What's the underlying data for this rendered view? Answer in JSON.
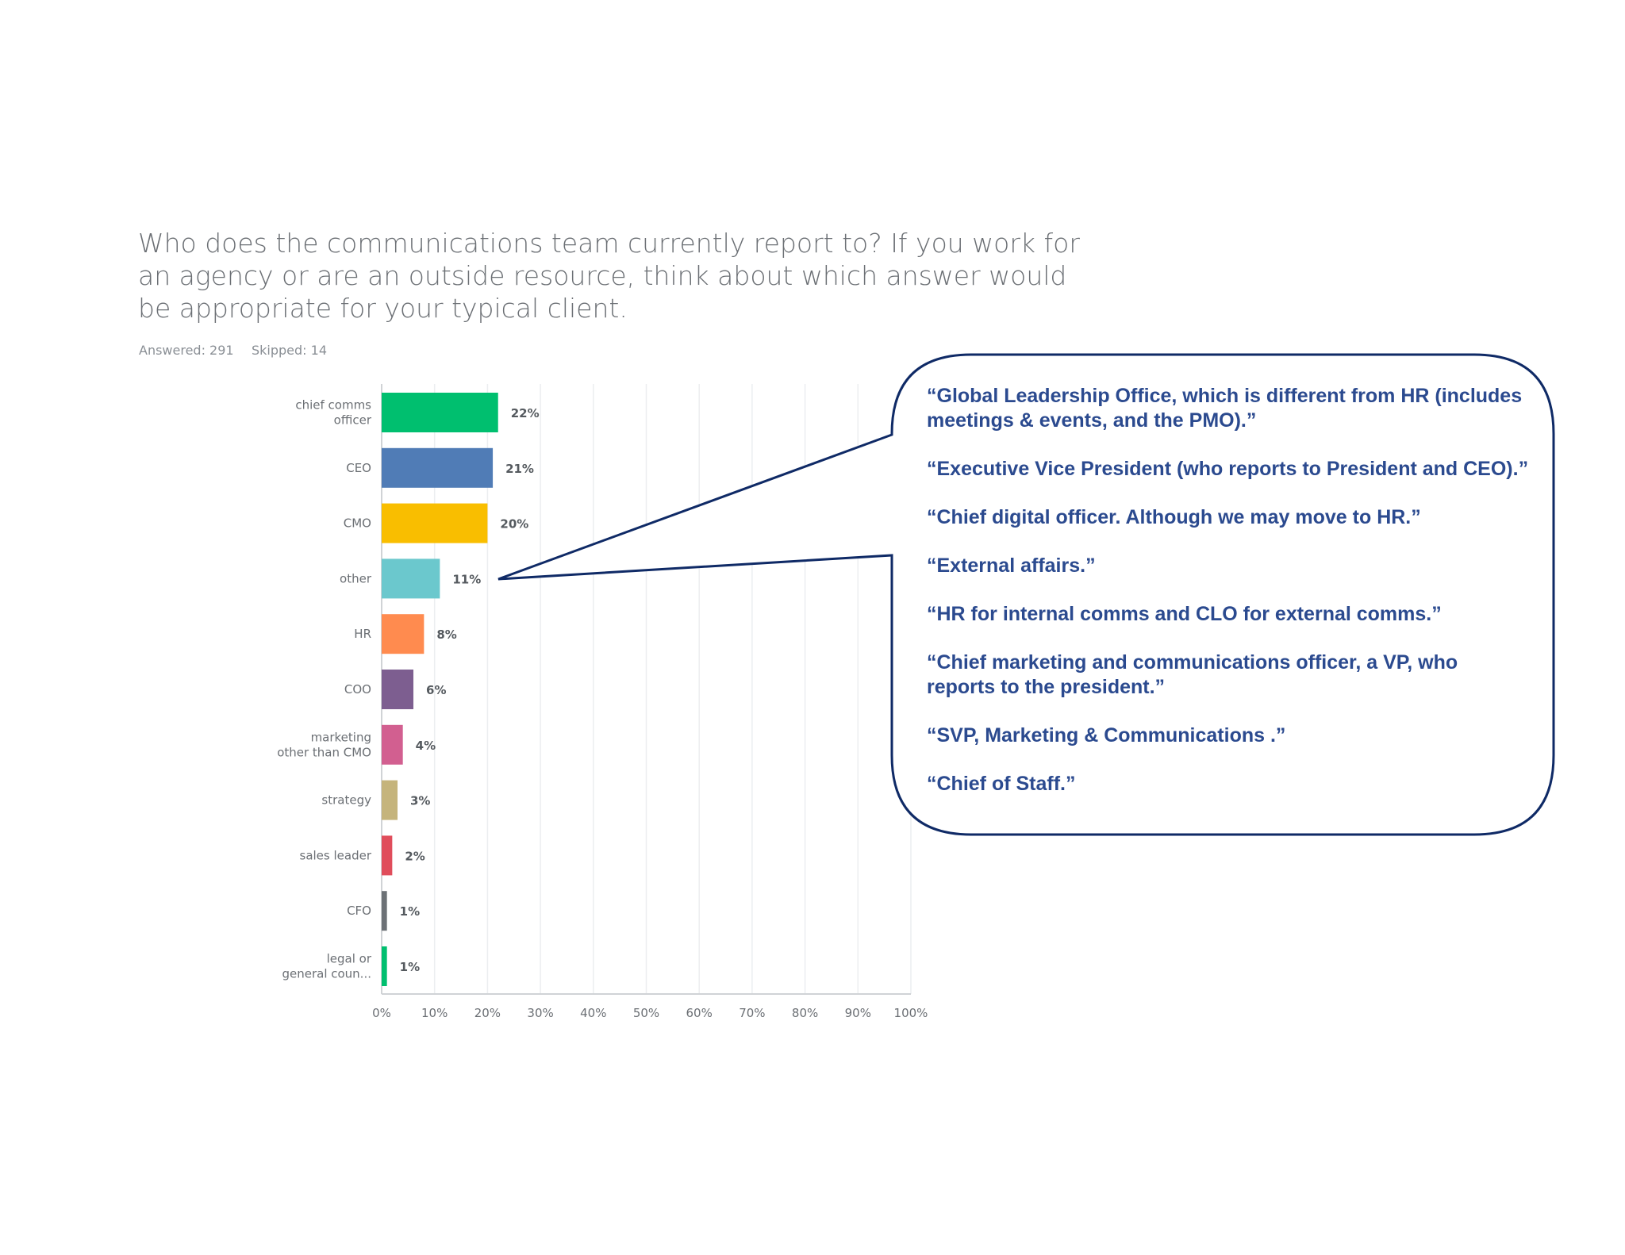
{
  "question": {
    "title": "Who does the communications team currently report to?  If you work for an agency or are an outside resource, think about which answer would be appropriate for your typical client.",
    "answered": "Answered: 291",
    "skipped": "Skipped: 14"
  },
  "chart_data": {
    "type": "bar",
    "orientation": "horizontal",
    "categories": [
      [
        "chief comms",
        "officer"
      ],
      [
        "CEO"
      ],
      [
        "CMO"
      ],
      [
        "other"
      ],
      [
        "HR"
      ],
      [
        "COO"
      ],
      [
        "marketing",
        "other than CMO"
      ],
      [
        "strategy"
      ],
      [
        "sales leader"
      ],
      [
        "CFO"
      ],
      [
        "legal or",
        "general coun..."
      ]
    ],
    "values": [
      22,
      21,
      20,
      11,
      8,
      6,
      4,
      3,
      2,
      1,
      1
    ],
    "value_labels": [
      "22%",
      "21%",
      "20%",
      "11%",
      "8%",
      "6%",
      "4%",
      "3%",
      "2%",
      "1%",
      "1%"
    ],
    "colors": [
      "#00bf6f",
      "#507cb6",
      "#f9be00",
      "#6bc8cd",
      "#ff8b4f",
      "#7d5e90",
      "#d25f90",
      "#c5b47c",
      "#e04d5b",
      "#6c7176",
      "#00bf6f"
    ],
    "xlim": [
      0,
      100
    ],
    "x_ticks": [
      "0%",
      "10%",
      "20%",
      "30%",
      "40%",
      "50%",
      "60%",
      "70%",
      "80%",
      "90%",
      "100%"
    ],
    "grid": true
  },
  "callout": {
    "border_color": "#0f2a66",
    "quotes": [
      "“Global Leadership Office, which is different from HR (includes meetings & events, and the PMO).”",
      "“Executive Vice President (who reports to President and CEO).”",
      "“Chief digital officer. Although we may move to HR.”",
      "“External affairs.”",
      "“HR for internal comms and CLO for external comms.”",
      "“Chief marketing and communications officer, a VP, who reports to the president.”",
      "“SVP, Marketing & Communications .”",
      "“Chief of Staff.”"
    ]
  }
}
